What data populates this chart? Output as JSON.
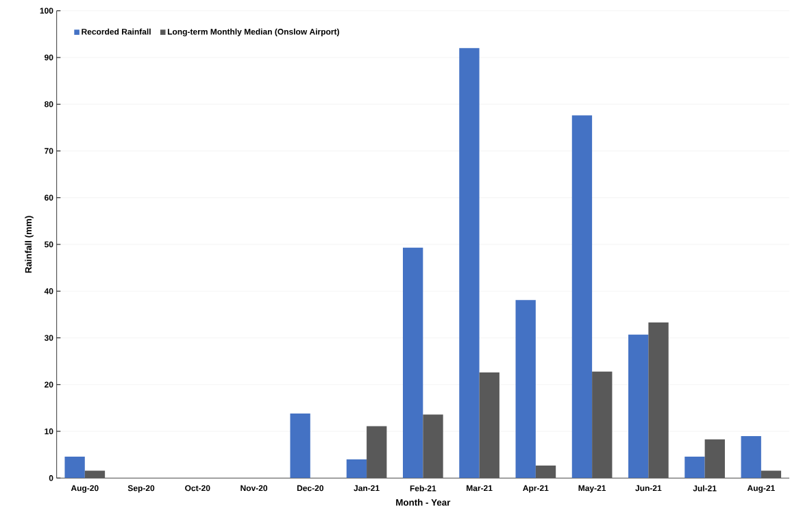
{
  "chart_data": {
    "type": "bar",
    "xlabel": "Month  - Year",
    "ylabel": "Rainfall (mm)",
    "categories": [
      "Aug-20",
      "Sep-20",
      "Oct-20",
      "Nov-20",
      "Dec-20",
      "Jan-21",
      "Feb-21",
      "Mar-21",
      "Apr-21",
      "May-21",
      "Jun-21",
      "Jul-21",
      "Aug-21"
    ],
    "series": [
      {
        "name": "Recorded Rainfall",
        "color": "#4472c4",
        "values": [
          4.6,
          0,
          0,
          0,
          13.8,
          4.0,
          49.3,
          92,
          38.1,
          77.6,
          30.7,
          4.6,
          9.0
        ]
      },
      {
        "name": "Long-term Monthly Median (Onslow Airport)",
        "color": "#595959",
        "values": [
          1.6,
          0,
          0,
          0,
          0,
          11.1,
          13.6,
          22.6,
          2.7,
          22.8,
          33.3,
          8.3,
          1.6
        ]
      }
    ],
    "ylim": [
      0,
      100
    ],
    "yticks": [
      0,
      10,
      20,
      30,
      40,
      50,
      60,
      70,
      80,
      90,
      100
    ],
    "grid": "y",
    "legend": "top left"
  }
}
